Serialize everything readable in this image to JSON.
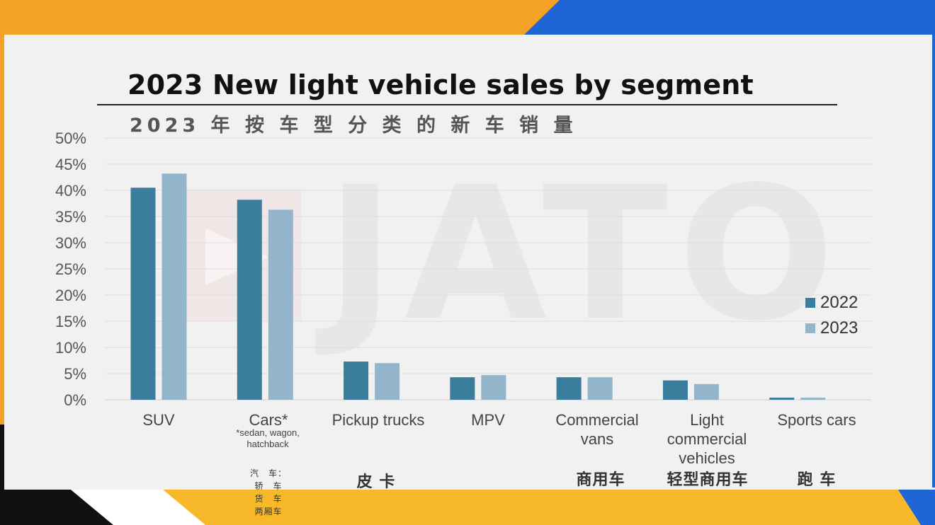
{
  "title": "2023 New light vehicle sales by segment",
  "subtitle": "2023 年 按 车 型 分 类 的 新 车 销 量",
  "watermark": "JATO",
  "colors": {
    "series_2022": "#3a7d9c",
    "series_2023": "#93b5cb",
    "frame_orange": "#f4a227",
    "frame_blue": "#1f65d6",
    "frame_yellow": "#f7b92a"
  },
  "chart_data": {
    "type": "bar",
    "title": "2023 New light vehicle sales by segment",
    "subtitle": "2023 年 按 车 型 分 类 的 新 车 销 量",
    "categories": [
      "SUV",
      "Cars*",
      "Pickup trucks",
      "MPV",
      "Commercial vans",
      "Light commercial vehicles",
      "Sports cars"
    ],
    "categories_cn": [
      "",
      "",
      "皮 卡",
      "",
      "商用车",
      "轻型商用车",
      "跑 车"
    ],
    "category_note": {
      "Cars*": "*sedan, wagon, hatchback"
    },
    "category_note_cn": {
      "Cars*": [
        "汽　车：",
        "轿　车",
        "货　车",
        "两厢车"
      ]
    },
    "series": [
      {
        "name": "2022",
        "values": [
          40.5,
          38.2,
          7.3,
          4.3,
          4.3,
          3.7,
          0.4
        ]
      },
      {
        "name": "2023",
        "values": [
          43.2,
          36.3,
          7.0,
          4.7,
          4.3,
          3.0,
          0.4
        ]
      }
    ],
    "ylim": [
      0,
      50
    ],
    "yticks": [
      "0%",
      "5%",
      "10%",
      "15%",
      "20%",
      "25%",
      "30%",
      "35%",
      "40%",
      "45%",
      "50%"
    ],
    "grid": true,
    "legend_position": "right"
  }
}
